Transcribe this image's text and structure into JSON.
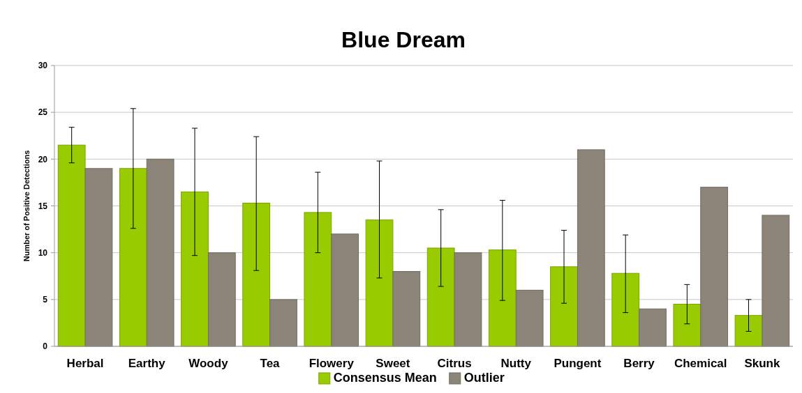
{
  "chart_data": {
    "type": "bar",
    "title": "Blue Dream",
    "ylabel": "Number of Positive Detections",
    "categories": [
      "Herbal",
      "Earthy",
      "Woody",
      "Tea",
      "Flowery",
      "Sweet",
      "Citrus",
      "Nutty",
      "Pungent",
      "Berry",
      "Chemical",
      "Skunk"
    ],
    "series": [
      {
        "name": "Consensus Mean",
        "color": "#99cc00",
        "values": [
          21.5,
          19,
          16.5,
          15.3,
          14.3,
          13.5,
          10.5,
          10.3,
          8.5,
          7.8,
          4.5,
          3.3
        ],
        "errors": [
          [
            19.6,
            23.4
          ],
          [
            12.6,
            25.4
          ],
          [
            9.7,
            23.3
          ],
          [
            8.1,
            22.4
          ],
          [
            10,
            18.6
          ],
          [
            7.3,
            19.8
          ],
          [
            6.4,
            14.6
          ],
          [
            4.9,
            15.6
          ],
          [
            4.6,
            12.4
          ],
          [
            3.6,
            11.9
          ],
          [
            2.4,
            6.6
          ],
          [
            1.6,
            5
          ]
        ]
      },
      {
        "name": "Outlier",
        "color": "#8c8479",
        "values": [
          19,
          20,
          10,
          5,
          12,
          8,
          10,
          6,
          21,
          4,
          17,
          14
        ]
      }
    ],
    "ylim": [
      0,
      30
    ],
    "yticks": [
      0,
      5,
      10,
      15,
      20,
      25,
      30
    ],
    "grid": "y",
    "legend": "bottom"
  }
}
